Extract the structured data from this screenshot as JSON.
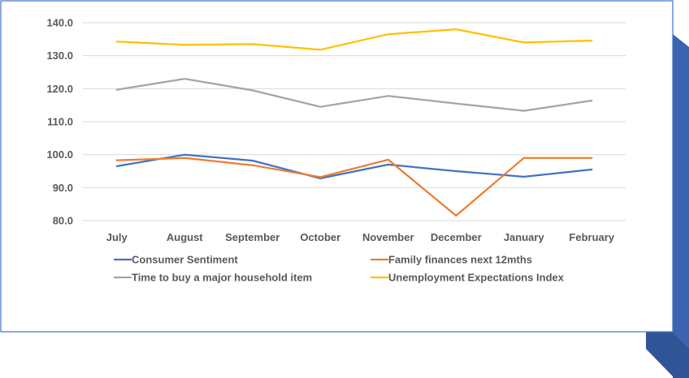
{
  "colors": {
    "frame_border": "#4472c4",
    "decor_dark": "#2f5597",
    "decor_mid": "#3a63b0",
    "gridline": "#d9d9d9",
    "text": "#595959"
  },
  "chart_data": {
    "type": "line",
    "title": "",
    "xlabel": "",
    "ylabel": "",
    "categories": [
      "July",
      "August",
      "September",
      "October",
      "November",
      "December",
      "January",
      "February"
    ],
    "ylim": [
      80,
      140
    ],
    "yticks": [
      "80.0",
      "90.0",
      "100.0",
      "110.0",
      "120.0",
      "130.0",
      "140.0"
    ],
    "grid": true,
    "legend_position": "bottom",
    "series": [
      {
        "name": "Consumer Sentiment",
        "color": "#4472c4",
        "values": [
          96.5,
          100.0,
          98.2,
          92.8,
          97.0,
          95.0,
          93.3,
          95.5
        ]
      },
      {
        "name": "Family finances next 12mths",
        "color": "#ed7d31",
        "values": [
          98.3,
          99.0,
          96.8,
          93.2,
          98.5,
          81.5,
          99.0,
          99.0
        ]
      },
      {
        "name": "Time to buy a major household item",
        "color": "#a5a5a5",
        "values": [
          119.7,
          123.0,
          119.5,
          114.5,
          117.8,
          115.5,
          113.3,
          116.4
        ]
      },
      {
        "name": "Unemployment Expectations Index",
        "color": "#ffc000",
        "values": [
          134.3,
          133.3,
          133.5,
          131.8,
          136.5,
          138.0,
          134.0,
          134.6
        ]
      }
    ]
  }
}
